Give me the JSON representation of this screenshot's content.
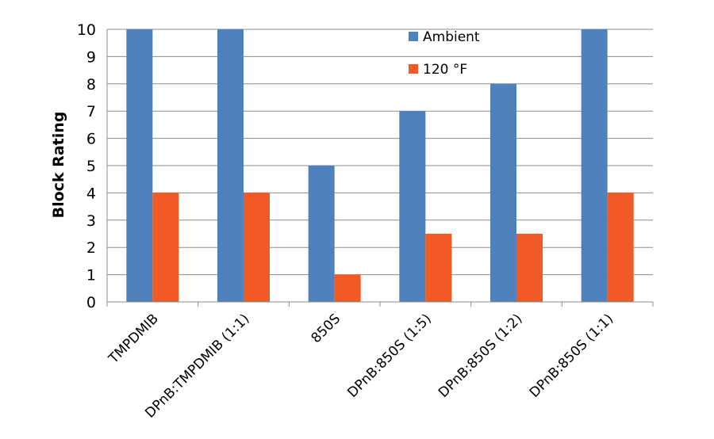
{
  "chart_data": {
    "type": "bar",
    "title": "",
    "xlabel": "",
    "ylabel": "Block Rating",
    "ylim": [
      0,
      10
    ],
    "yticks": [
      0,
      1,
      2,
      3,
      4,
      5,
      6,
      7,
      8,
      9,
      10
    ],
    "grid": true,
    "legend_position": "top-right",
    "categories": [
      "TMPDMIB",
      "DPnB:TMPDMIB (1:1)",
      "850S",
      "DPnB:850S (1:5)",
      "DPnB:850S (1:2)",
      "DPnB:850S (1:1)"
    ],
    "series": [
      {
        "name": "Ambient",
        "color": "#4F81BD",
        "values": [
          10,
          10,
          5,
          7,
          8,
          10
        ]
      },
      {
        "name": "120 °F",
        "color": "#F15A24",
        "values": [
          4,
          4,
          1,
          2.5,
          2.5,
          4
        ]
      }
    ]
  }
}
